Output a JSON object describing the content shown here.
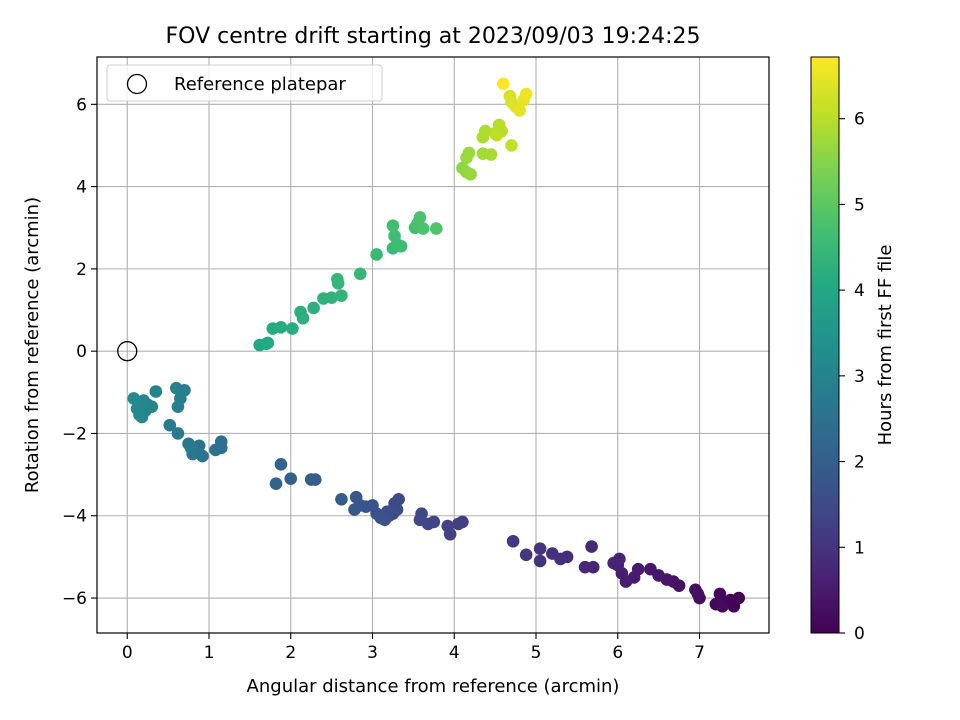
{
  "chart_data": {
    "type": "scatter",
    "title": "FOV centre drift starting at 2023/09/03 19:24:25",
    "xlabel": "Angular distance from reference (arcmin)",
    "ylabel": "Rotation from reference (arcmin)",
    "xlim": [
      -0.37,
      7.85
    ],
    "ylim": [
      -6.85,
      7.15
    ],
    "xticks": [
      "0",
      "1",
      "2",
      "3",
      "4",
      "5",
      "6",
      "7"
    ],
    "yticks": [
      "−6",
      "−4",
      "−2",
      "0",
      "2",
      "4",
      "6"
    ],
    "grid": true,
    "legend": {
      "position": "top-left",
      "label": "Reference platepar"
    },
    "reference_point": {
      "x": 0,
      "y": 0
    },
    "colorbar": {
      "label": "Hours from first FF file",
      "colormap": "viridis",
      "range": [
        0,
        6.72
      ],
      "ticks": [
        "0",
        "1",
        "2",
        "3",
        "4",
        "5",
        "6"
      ]
    },
    "points": [
      {
        "x": 7.38,
        "y": -6.05,
        "h": 0.02
      },
      {
        "x": 7.42,
        "y": -6.2,
        "h": 0.05
      },
      {
        "x": 7.48,
        "y": -6.0,
        "h": 0.08
      },
      {
        "x": 7.3,
        "y": -6.1,
        "h": 0.1
      },
      {
        "x": 7.25,
        "y": -5.9,
        "h": 0.12
      },
      {
        "x": 7.2,
        "y": -6.15,
        "h": 0.15
      },
      {
        "x": 7.28,
        "y": -6.2,
        "h": 0.18
      },
      {
        "x": 7.0,
        "y": -6.0,
        "h": 0.22
      },
      {
        "x": 6.95,
        "y": -5.8,
        "h": 0.25
      },
      {
        "x": 6.98,
        "y": -5.9,
        "h": 0.28
      },
      {
        "x": 6.75,
        "y": -5.7,
        "h": 0.32
      },
      {
        "x": 6.68,
        "y": -5.6,
        "h": 0.35
      },
      {
        "x": 6.6,
        "y": -5.55,
        "h": 0.38
      },
      {
        "x": 6.5,
        "y": -5.45,
        "h": 0.42
      },
      {
        "x": 6.4,
        "y": -5.3,
        "h": 0.45
      },
      {
        "x": 6.25,
        "y": -5.3,
        "h": 0.48
      },
      {
        "x": 6.2,
        "y": -5.5,
        "h": 0.52
      },
      {
        "x": 6.1,
        "y": -5.6,
        "h": 0.55
      },
      {
        "x": 6.05,
        "y": -5.4,
        "h": 0.58
      },
      {
        "x": 6.0,
        "y": -5.2,
        "h": 0.62
      },
      {
        "x": 6.02,
        "y": -5.05,
        "h": 0.65
      },
      {
        "x": 5.95,
        "y": -5.15,
        "h": 0.68
      },
      {
        "x": 5.7,
        "y": -5.25,
        "h": 0.72
      },
      {
        "x": 5.68,
        "y": -4.75,
        "h": 0.75
      },
      {
        "x": 5.6,
        "y": -5.25,
        "h": 0.78
      },
      {
        "x": 5.38,
        "y": -5.0,
        "h": 0.85
      },
      {
        "x": 5.3,
        "y": -5.05,
        "h": 0.9
      },
      {
        "x": 5.2,
        "y": -4.92,
        "h": 0.93
      },
      {
        "x": 5.05,
        "y": -5.1,
        "h": 0.96
      },
      {
        "x": 5.05,
        "y": -4.8,
        "h": 1.0
      },
      {
        "x": 4.88,
        "y": -4.95,
        "h": 1.05
      },
      {
        "x": 4.72,
        "y": -4.62,
        "h": 1.1
      },
      {
        "x": 4.1,
        "y": -4.15,
        "h": 1.2
      },
      {
        "x": 4.05,
        "y": -4.2,
        "h": 1.25
      },
      {
        "x": 3.95,
        "y": -4.45,
        "h": 1.28
      },
      {
        "x": 3.92,
        "y": -4.25,
        "h": 1.3
      },
      {
        "x": 3.75,
        "y": -4.15,
        "h": 1.35
      },
      {
        "x": 3.68,
        "y": -4.2,
        "h": 1.38
      },
      {
        "x": 3.6,
        "y": -3.95,
        "h": 1.42
      },
      {
        "x": 3.58,
        "y": -4.1,
        "h": 1.45
      },
      {
        "x": 3.32,
        "y": -3.6,
        "h": 1.5
      },
      {
        "x": 3.3,
        "y": -3.85,
        "h": 1.52
      },
      {
        "x": 3.27,
        "y": -3.7,
        "h": 1.55
      },
      {
        "x": 3.25,
        "y": -3.95,
        "h": 1.57
      },
      {
        "x": 3.2,
        "y": -4.0,
        "h": 1.6
      },
      {
        "x": 3.18,
        "y": -3.9,
        "h": 1.62
      },
      {
        "x": 3.15,
        "y": -4.1,
        "h": 1.65
      },
      {
        "x": 3.1,
        "y": -4.05,
        "h": 1.68
      },
      {
        "x": 3.05,
        "y": -3.95,
        "h": 1.7
      },
      {
        "x": 3.0,
        "y": -3.75,
        "h": 1.72
      },
      {
        "x": 2.92,
        "y": -3.78,
        "h": 1.75
      },
      {
        "x": 2.85,
        "y": -3.75,
        "h": 1.78
      },
      {
        "x": 2.8,
        "y": -3.55,
        "h": 1.8
      },
      {
        "x": 2.78,
        "y": -3.85,
        "h": 1.82
      },
      {
        "x": 2.62,
        "y": -3.6,
        "h": 1.88
      },
      {
        "x": 2.3,
        "y": -3.12,
        "h": 1.95
      },
      {
        "x": 2.25,
        "y": -3.12,
        "h": 1.98
      },
      {
        "x": 2.0,
        "y": -3.1,
        "h": 2.05
      },
      {
        "x": 1.88,
        "y": -2.75,
        "h": 2.1
      },
      {
        "x": 1.82,
        "y": -3.22,
        "h": 2.12
      },
      {
        "x": 1.15,
        "y": -2.2,
        "h": 2.45
      },
      {
        "x": 1.15,
        "y": -2.35,
        "h": 2.48
      },
      {
        "x": 1.08,
        "y": -2.4,
        "h": 2.5
      },
      {
        "x": 0.92,
        "y": -2.55,
        "h": 2.55
      },
      {
        "x": 0.88,
        "y": -2.3,
        "h": 2.58
      },
      {
        "x": 0.8,
        "y": -2.5,
        "h": 2.62
      },
      {
        "x": 0.78,
        "y": -2.35,
        "h": 2.65
      },
      {
        "x": 0.75,
        "y": -2.25,
        "h": 2.68
      },
      {
        "x": 0.62,
        "y": -2.0,
        "h": 2.72
      },
      {
        "x": 0.52,
        "y": -1.8,
        "h": 2.75
      },
      {
        "x": 0.7,
        "y": -0.95,
        "h": 2.85
      },
      {
        "x": 0.65,
        "y": -1.15,
        "h": 2.88
      },
      {
        "x": 0.62,
        "y": -1.35,
        "h": 2.9
      },
      {
        "x": 0.6,
        "y": -0.9,
        "h": 2.92
      },
      {
        "x": 0.35,
        "y": -0.98,
        "h": 2.98
      },
      {
        "x": 0.3,
        "y": -1.35,
        "h": 3.0
      },
      {
        "x": 0.25,
        "y": -1.3,
        "h": 3.02
      },
      {
        "x": 0.22,
        "y": -1.45,
        "h": 3.05
      },
      {
        "x": 0.2,
        "y": -1.2,
        "h": 3.08
      },
      {
        "x": 0.18,
        "y": -1.6,
        "h": 3.1
      },
      {
        "x": 0.15,
        "y": -1.55,
        "h": 3.12
      },
      {
        "x": 0.12,
        "y": -1.4,
        "h": 3.15
      },
      {
        "x": 0.08,
        "y": -1.15,
        "h": 3.18
      },
      {
        "x": 1.62,
        "y": 0.15,
        "h": 4.0
      },
      {
        "x": 1.7,
        "y": 0.18,
        "h": 4.02
      },
      {
        "x": 1.72,
        "y": 0.2,
        "h": 4.05
      },
      {
        "x": 1.78,
        "y": 0.55,
        "h": 4.1
      },
      {
        "x": 1.88,
        "y": 0.58,
        "h": 4.12
      },
      {
        "x": 2.02,
        "y": 0.55,
        "h": 4.15
      },
      {
        "x": 2.12,
        "y": 0.95,
        "h": 4.2
      },
      {
        "x": 2.15,
        "y": 0.8,
        "h": 4.22
      },
      {
        "x": 2.28,
        "y": 1.05,
        "h": 4.25
      },
      {
        "x": 2.4,
        "y": 1.28,
        "h": 4.3
      },
      {
        "x": 2.5,
        "y": 1.3,
        "h": 4.32
      },
      {
        "x": 2.62,
        "y": 1.35,
        "h": 4.35
      },
      {
        "x": 2.58,
        "y": 1.65,
        "h": 4.38
      },
      {
        "x": 2.57,
        "y": 1.75,
        "h": 4.4
      },
      {
        "x": 2.85,
        "y": 1.88,
        "h": 4.45
      },
      {
        "x": 3.05,
        "y": 2.35,
        "h": 4.5
      },
      {
        "x": 3.25,
        "y": 2.5,
        "h": 4.55
      },
      {
        "x": 3.3,
        "y": 2.6,
        "h": 4.58
      },
      {
        "x": 3.35,
        "y": 2.55,
        "h": 4.6
      },
      {
        "x": 3.27,
        "y": 2.8,
        "h": 4.62
      },
      {
        "x": 3.25,
        "y": 3.05,
        "h": 4.65
      },
      {
        "x": 3.52,
        "y": 3.0,
        "h": 4.72
      },
      {
        "x": 3.55,
        "y": 3.1,
        "h": 4.75
      },
      {
        "x": 3.58,
        "y": 3.25,
        "h": 4.78
      },
      {
        "x": 3.62,
        "y": 2.98,
        "h": 4.8
      },
      {
        "x": 3.78,
        "y": 2.98,
        "h": 4.85
      },
      {
        "x": 4.1,
        "y": 4.45,
        "h": 5.6
      },
      {
        "x": 4.15,
        "y": 4.35,
        "h": 5.62
      },
      {
        "x": 4.2,
        "y": 4.3,
        "h": 5.65
      },
      {
        "x": 4.15,
        "y": 4.7,
        "h": 5.7
      },
      {
        "x": 4.18,
        "y": 4.82,
        "h": 5.72
      },
      {
        "x": 4.35,
        "y": 4.8,
        "h": 5.8
      },
      {
        "x": 4.45,
        "y": 4.78,
        "h": 5.82
      },
      {
        "x": 4.35,
        "y": 5.2,
        "h": 5.88
      },
      {
        "x": 4.38,
        "y": 5.35,
        "h": 5.9
      },
      {
        "x": 4.5,
        "y": 5.3,
        "h": 5.95
      },
      {
        "x": 4.55,
        "y": 5.5,
        "h": 6.0
      },
      {
        "x": 4.58,
        "y": 5.35,
        "h": 6.02
      },
      {
        "x": 4.52,
        "y": 5.25,
        "h": 6.05
      },
      {
        "x": 4.7,
        "y": 5.0,
        "h": 6.1
      },
      {
        "x": 4.68,
        "y": 6.2,
        "h": 6.3
      },
      {
        "x": 4.7,
        "y": 6.05,
        "h": 6.35
      },
      {
        "x": 4.75,
        "y": 5.95,
        "h": 6.4
      },
      {
        "x": 4.8,
        "y": 5.85,
        "h": 6.45
      },
      {
        "x": 4.85,
        "y": 6.1,
        "h": 6.5
      },
      {
        "x": 4.88,
        "y": 6.25,
        "h": 6.55
      },
      {
        "x": 4.6,
        "y": 6.5,
        "h": 6.7
      }
    ]
  }
}
